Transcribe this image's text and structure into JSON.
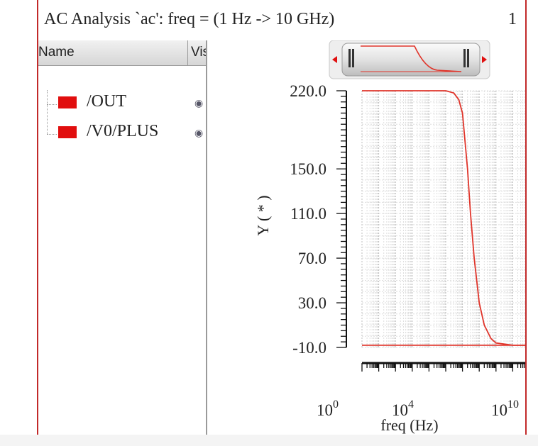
{
  "window": {
    "title": "AC Analysis `ac': freq = (1 Hz -> 10 GHz)",
    "page_number": "1"
  },
  "signal_list": {
    "columns": {
      "name": "Name",
      "visible": "Vis"
    },
    "signals": [
      {
        "label": "/OUT",
        "color": "#e10e0e",
        "visibility_icon": "eye-icon"
      },
      {
        "label": "/V0/PLUS",
        "color": "#e10e0e",
        "visibility_icon": "eye-icon"
      }
    ]
  },
  "navigator": {
    "left_arrow_icon": "left-arrow-icon",
    "right_arrow_icon": "right-arrow-icon",
    "grip_icon": "grip-icon"
  },
  "chart_data": {
    "type": "line",
    "ylabel": "Y ( * )",
    "xlabel": "freq (Hz)",
    "xscale": "log",
    "xlim": [
      1,
      10000000000
    ],
    "ylim": [
      -10,
      220
    ],
    "y_tick_labels": [
      "220.0",
      "150.0",
      "110.0",
      "70.0",
      "30.0",
      "-10.0"
    ],
    "y_tick_values": [
      220,
      150,
      110,
      70,
      30,
      -10
    ],
    "x_tick_labels": [
      {
        "base": "10",
        "exp": "0",
        "value": 1
      },
      {
        "base": "10",
        "exp": "4",
        "value": 10000
      },
      {
        "base": "10",
        "exp": "10",
        "value": 10000000000
      }
    ],
    "grid": true,
    "line_color": "#e0352b",
    "series": [
      {
        "name": "/OUT",
        "x": [
          1,
          10,
          100,
          1000,
          10000,
          100000,
          300000,
          600000,
          1000000,
          2000000,
          3000000,
          5000000,
          10000000,
          20000000,
          50000000,
          100000000,
          1000000000,
          10000000000
        ],
        "y": [
          220,
          220,
          220,
          220,
          220,
          220,
          218,
          212,
          200,
          150,
          110,
          70,
          30,
          10,
          -2,
          -6,
          -8,
          -8
        ]
      },
      {
        "name": "/V0/PLUS",
        "x": [
          1,
          10000000000
        ],
        "y": [
          -8,
          -8
        ]
      }
    ]
  }
}
